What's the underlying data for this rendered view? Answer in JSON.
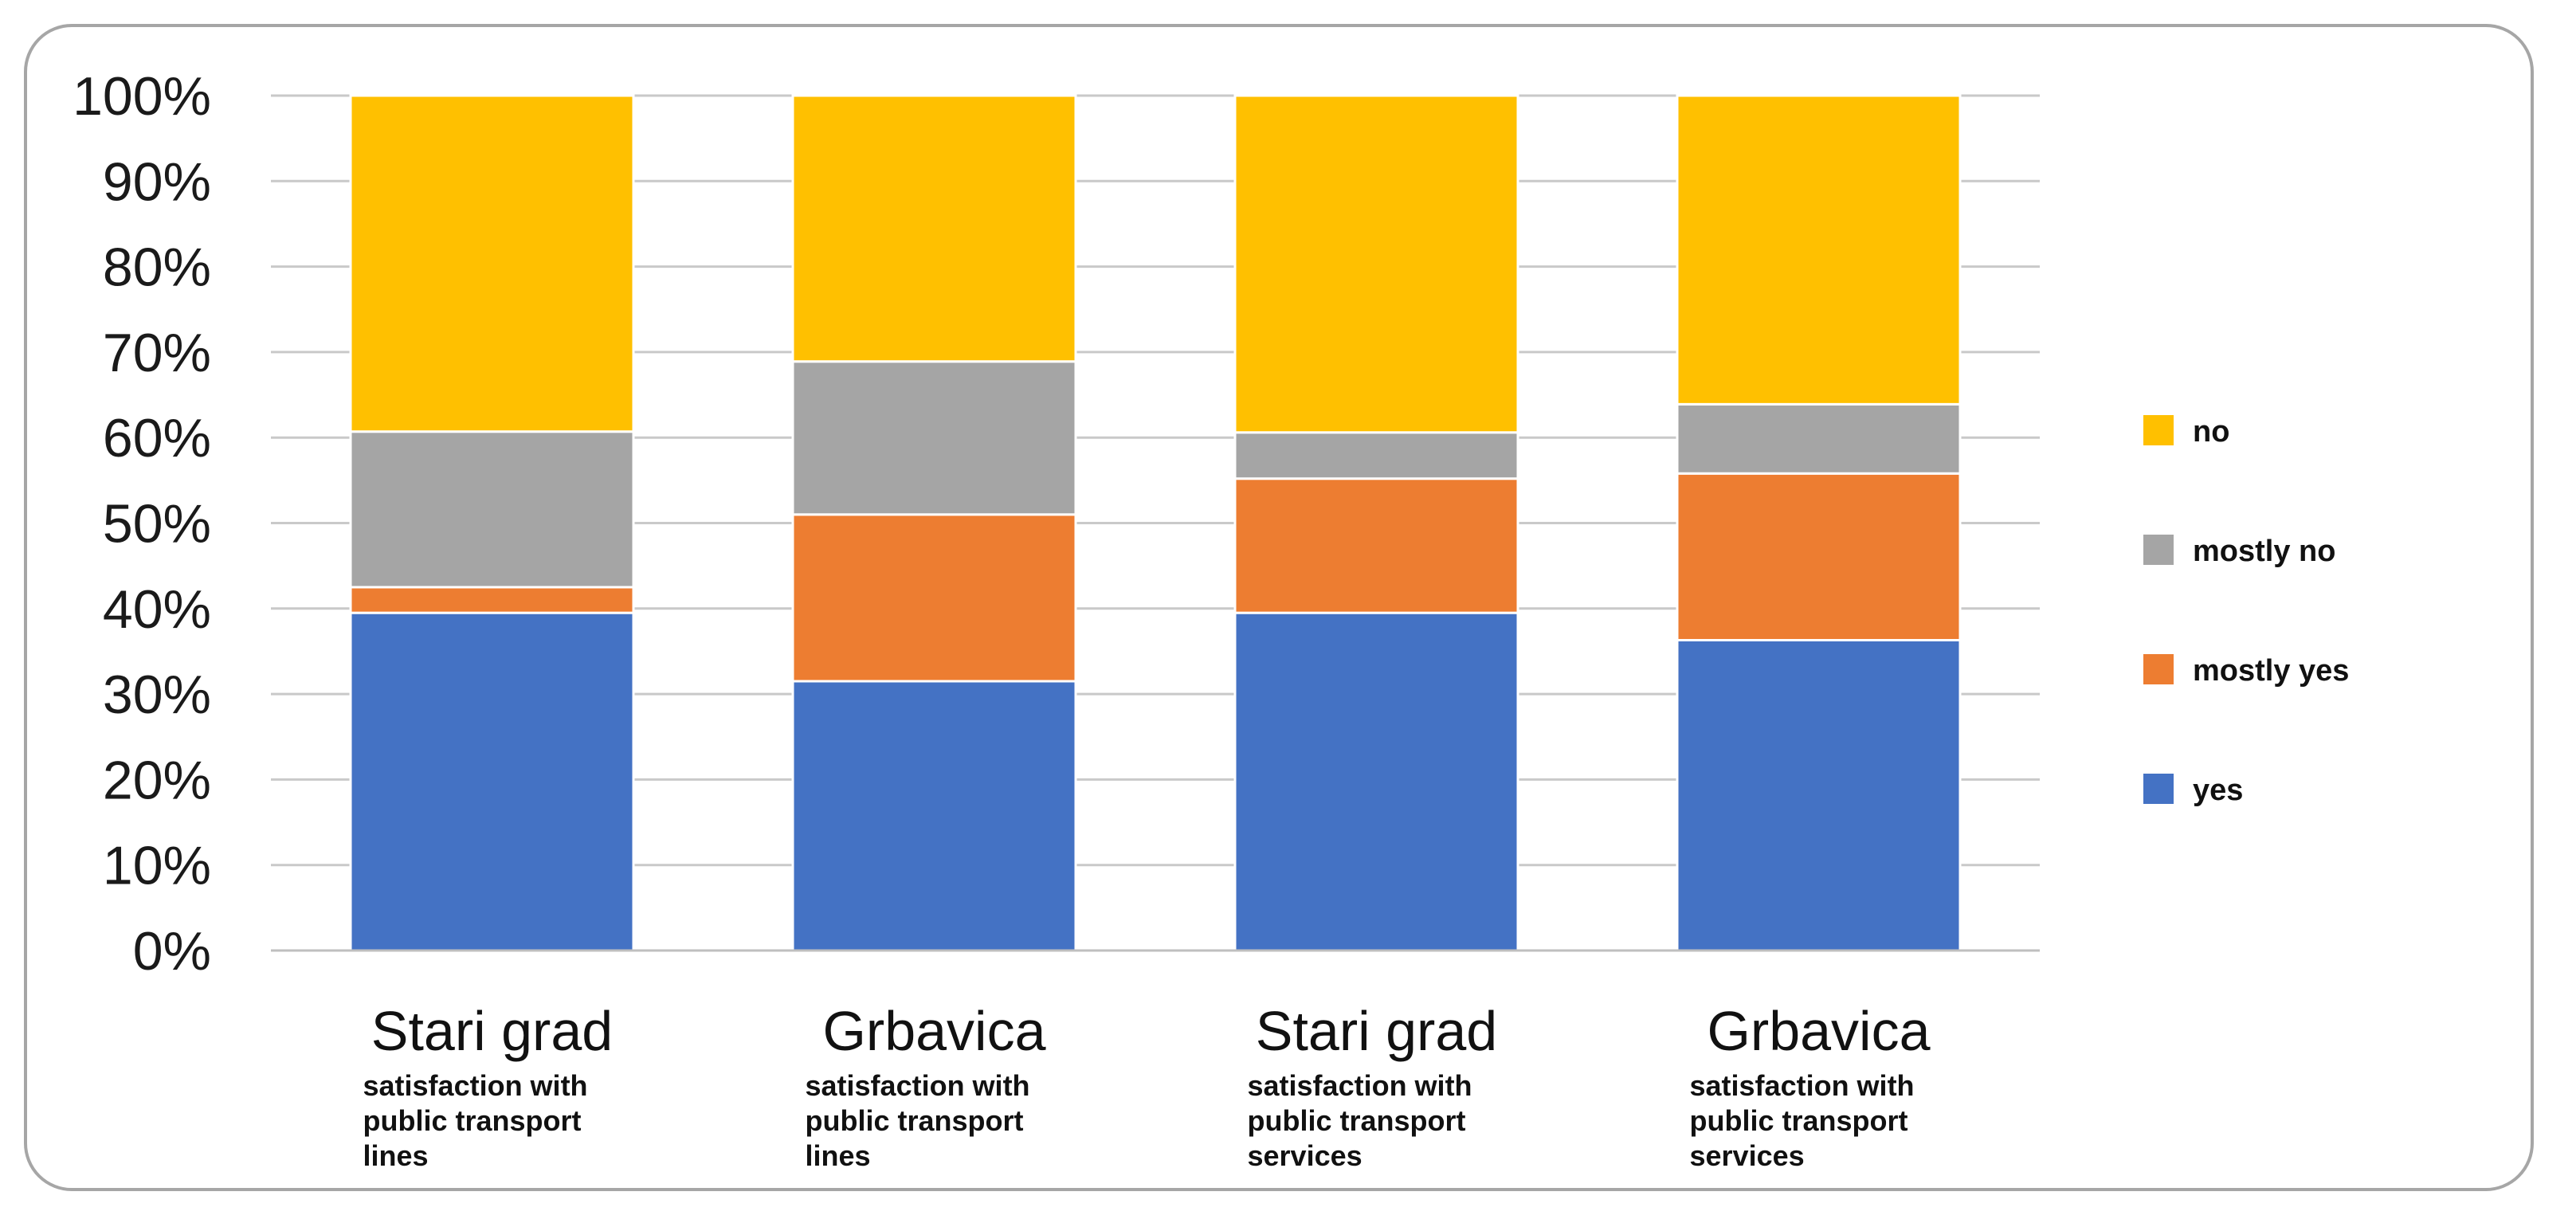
{
  "chart_data": {
    "type": "bar",
    "stacked": true,
    "percent_stacked": true,
    "categories": [
      {
        "title": "Stari grad",
        "subtitle": [
          "satisfaction with",
          "public transport",
          "lines"
        ]
      },
      {
        "title": "Grbavica",
        "subtitle": [
          "satisfaction with",
          "public transport",
          "lines"
        ]
      },
      {
        "title": "Stari grad",
        "subtitle": [
          "satisfaction with",
          "public transport",
          "services"
        ]
      },
      {
        "title": "Grbavica",
        "subtitle": [
          "satisfaction with",
          "public transport",
          "services"
        ]
      }
    ],
    "series": [
      {
        "name": "yes",
        "color": "#4472C4",
        "values": [
          39.5,
          31.5,
          39.5,
          36.3
        ]
      },
      {
        "name": "mostly yes",
        "color": "#ED7D31",
        "values": [
          3.0,
          19.5,
          15.7,
          19.5
        ]
      },
      {
        "name": "mostly no",
        "color": "#A5A5A5",
        "values": [
          18.2,
          17.9,
          5.4,
          8.1
        ]
      },
      {
        "name": "no",
        "color": "#FFC000",
        "values": [
          39.3,
          31.1,
          39.4,
          36.1
        ]
      }
    ],
    "legend_order": [
      "no",
      "mostly no",
      "mostly yes",
      "yes"
    ],
    "legend_position": "right",
    "ylim": [
      0,
      100
    ],
    "yticks": [
      "0%",
      "10%",
      "20%",
      "30%",
      "40%",
      "50%",
      "60%",
      "70%",
      "80%",
      "90%",
      "100%"
    ],
    "grid": true,
    "title": "",
    "xlabel": "",
    "ylabel": ""
  }
}
